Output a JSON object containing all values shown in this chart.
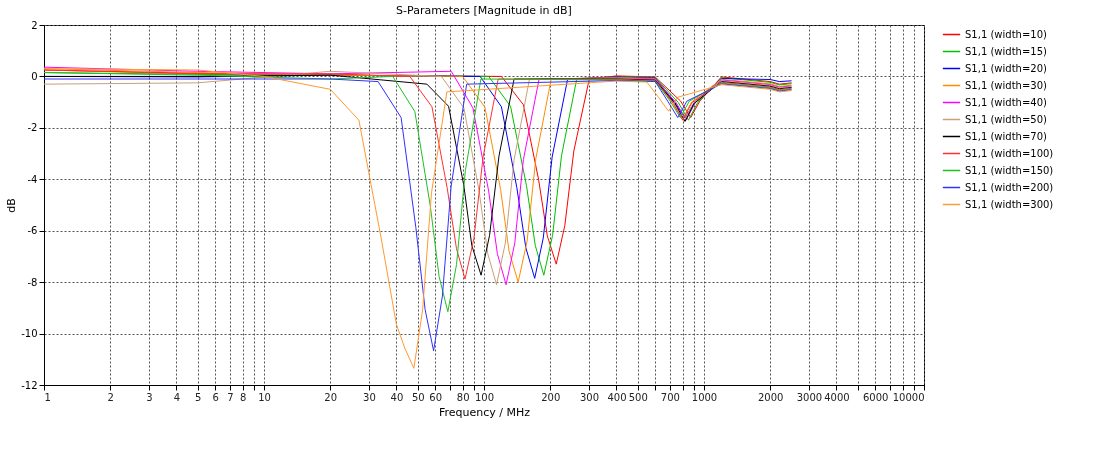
{
  "chart_data": {
    "type": "line",
    "title": "S-Parameters [Magnitude in dB]",
    "xlabel": "Frequency / MHz",
    "ylabel": "dB",
    "log": "x",
    "grid": true,
    "legend": "right",
    "marker": "none",
    "line_style": "solid",
    "xlim": [
      1,
      10000
    ],
    "ylim": [
      -12,
      2
    ],
    "xticks": [
      1,
      2,
      3,
      4,
      5,
      6,
      7,
      8,
      {
        "value": 9,
        "label": null
      },
      10,
      20,
      30,
      40,
      50,
      60,
      {
        "value": 70,
        "label": null
      },
      80,
      {
        "value": 90,
        "label": null
      },
      100,
      200,
      300,
      400,
      500,
      {
        "value": 600,
        "label": null
      },
      700,
      {
        "value": 800,
        "label": null
      },
      {
        "value": 900,
        "label": null
      },
      1000,
      2000,
      3000,
      4000,
      {
        "value": 5000,
        "label": null
      },
      6000,
      {
        "value": 7000,
        "label": null
      },
      {
        "value": 8000,
        "label": null
      },
      {
        "value": 9000,
        "label": null
      },
      10000
    ],
    "yticks": [
      -12,
      -10,
      -8,
      -6,
      -4,
      -2,
      0,
      2
    ],
    "series": [
      {
        "name": "S1,1 (width=10)",
        "color": "#ff0000",
        "x": [
          1,
          5,
          20,
          120,
          151,
          177,
          194,
          213,
          233,
          256,
          301,
          400,
          600,
          783,
          870,
          957,
          1200,
          2000,
          2200,
          2500
        ],
        "values": [
          0.25,
          0.12,
          0.05,
          0,
          -1.1,
          -4.0,
          -6.2,
          -7.3,
          -5.8,
          -2.9,
          -0.1,
          0.02,
          -0.02,
          -0.96,
          -1.6,
          -0.96,
          -0.02,
          -0.2,
          -0.3,
          -0.25
        ]
      },
      {
        "name": "S1,1 (width=15)",
        "color": "#00c000",
        "x": [
          1,
          5,
          20,
          105,
          132,
          156,
          171,
          187,
          205,
          225,
          264,
          400,
          600,
          765,
          850,
          935,
          1200,
          2000,
          2200,
          2500
        ],
        "values": [
          0.15,
          0.08,
          0.05,
          0,
          -1.16,
          -4.25,
          -6.57,
          -7.73,
          -6.18,
          -3.09,
          -0.1,
          0,
          -0.04,
          -1.02,
          -1.7,
          -1.02,
          -0.05,
          -0.23,
          -0.33,
          -0.28
        ]
      },
      {
        "name": "S1,1 (width=20)",
        "color": "#0000ff",
        "x": [
          1,
          5,
          20,
          96,
          120,
          141,
          155,
          170,
          186,
          204,
          240,
          400,
          600,
          738,
          820,
          902,
          1200,
          2000,
          2200,
          2500
        ],
        "values": [
          0,
          -0.02,
          0.05,
          0,
          -1.18,
          -4.32,
          -6.67,
          -7.85,
          -6.28,
          -3.14,
          -0.1,
          -0.02,
          -0.06,
          -1.02,
          -1.62,
          -1.02,
          -0.08,
          -0.12,
          -0.2,
          -0.17
        ]
      },
      {
        "name": "S1,1 (width=30)",
        "color": "#ff8c00",
        "x": [
          1,
          5,
          20,
          80,
          101,
          119,
          130,
          143,
          157,
          172,
          202,
          400,
          600,
          720,
          800,
          880,
          1200,
          2000,
          2200,
          2500
        ],
        "values": [
          0.3,
          0.15,
          0.05,
          0,
          -1.2,
          -4.4,
          -6.8,
          -8.0,
          -6.4,
          -3.2,
          -0.1,
          -0.04,
          -0.08,
          -0.99,
          -1.65,
          -0.99,
          -0.11,
          -0.29,
          -0.39,
          -0.34
        ]
      },
      {
        "name": "S1,1 (width=40)",
        "color": "#ff00ff",
        "x": [
          1,
          5,
          20,
          71,
          89,
          105,
          115,
          126,
          138,
          151,
          178,
          400,
          600,
          747,
          830,
          913,
          1200,
          2000,
          2200,
          2500
        ],
        "values": [
          0.36,
          0.2,
          0.1,
          0.2,
          -1.22,
          -4.46,
          -6.89,
          -8.1,
          -6.48,
          -3.24,
          -0.1,
          -0.06,
          -0.1,
          -1.02,
          -1.7,
          -1.02,
          -0.14,
          -0.32,
          -0.42,
          -0.37
        ]
      },
      {
        "name": "S1,1 (width=50)",
        "color": "#c8a07a",
        "x": [
          1,
          5,
          20,
          64,
          81,
          95,
          104,
          114,
          125,
          137,
          161,
          400,
          600,
          729,
          810,
          891,
          1200,
          2000,
          2200,
          2500
        ],
        "values": [
          -0.3,
          -0.25,
          0.2,
          0,
          -1.22,
          -4.46,
          -6.89,
          -8.1,
          -6.48,
          -3.24,
          -0.1,
          -0.08,
          -0.12,
          -1.05,
          -1.75,
          -1.05,
          -0.17,
          -0.35,
          -0.45,
          -0.4
        ]
      },
      {
        "name": "S1,1 (width=70)",
        "color": "#000000",
        "x": [
          1,
          5,
          20,
          55,
          69,
          81,
          88,
          97,
          106,
          117,
          137,
          400,
          600,
          738,
          820,
          902,
          1200,
          2000,
          2200,
          2500
        ],
        "values": [
          0,
          0,
          0.05,
          -0.3,
          -1.16,
          -4.25,
          -6.57,
          -7.73,
          -6.18,
          -3.09,
          -0.1,
          -0.1,
          -0.14,
          -1.05,
          -1.75,
          -1.05,
          -0.2,
          -0.38,
          -0.48,
          -0.43
        ]
      },
      {
        "name": "S1,1 (width=100)",
        "color": "#ff3030",
        "x": [
          1,
          5,
          20,
          46,
          58,
          68,
          75,
          82,
          90,
          99,
          116,
          400,
          600,
          720,
          800,
          880,
          1200,
          2000,
          2200,
          2500
        ],
        "values": [
          0.25,
          0.1,
          0.1,
          0,
          -1.18,
          -4.33,
          -6.7,
          -7.88,
          -6.3,
          -3.15,
          -0.1,
          -0.12,
          -0.16,
          -1.02,
          -1.7,
          -1.02,
          -0.23,
          -0.41,
          -0.51,
          -0.46
        ]
      },
      {
        "name": "S1,1 (width=150)",
        "color": "#20c020",
        "x": [
          1,
          5,
          20,
          38.5,
          48.5,
          57,
          62.5,
          68.5,
          75,
          82.3,
          96.8,
          400,
          600,
          702,
          780,
          858,
          1200,
          2000,
          2200,
          2500
        ],
        "values": [
          0.15,
          0.05,
          -0.1,
          0,
          -1.37,
          -5.03,
          -7.78,
          -9.15,
          -7.32,
          -3.66,
          -0.1,
          -0.14,
          -0.18,
          -0.96,
          -1.6,
          -0.96,
          -0.26,
          -0.44,
          -0.54,
          -0.49
        ]
      },
      {
        "name": "S1,1 (width=200)",
        "color": "#3030ff",
        "x": [
          1,
          5,
          20,
          33,
          42,
          49,
          54,
          59,
          64.7,
          70.9,
          83.4,
          400,
          600,
          684,
          760,
          836,
          1200,
          2000,
          2200,
          2500
        ],
        "values": [
          -0.1,
          -0.1,
          -0.1,
          -0.2,
          -1.6,
          -5.87,
          -9.07,
          -10.67,
          -8.54,
          -4.27,
          -0.3,
          -0.16,
          -0.2,
          -0.96,
          -1.6,
          -0.96,
          -0.29,
          -0.47,
          -0.57,
          -0.52
        ]
      },
      {
        "name": "S1,1 (width=300)",
        "color": "#ff9933",
        "x": [
          1,
          5,
          10,
          20,
          27,
          34,
          40,
          43.8,
          48,
          52.6,
          57.7,
          67.8,
          400,
          550,
          621,
          690,
          759,
          1200,
          2000,
          2200,
          2500
        ],
        "values": [
          0.3,
          0.25,
          0,
          -0.5,
          -1.7,
          -6.24,
          -9.65,
          -10.6,
          -11.35,
          -9.08,
          -4.54,
          -0.6,
          -0.18,
          -0.22,
          -0.81,
          -1.35,
          -0.81,
          -0.32,
          -0.5,
          -0.6,
          -0.55
        ]
      }
    ]
  }
}
